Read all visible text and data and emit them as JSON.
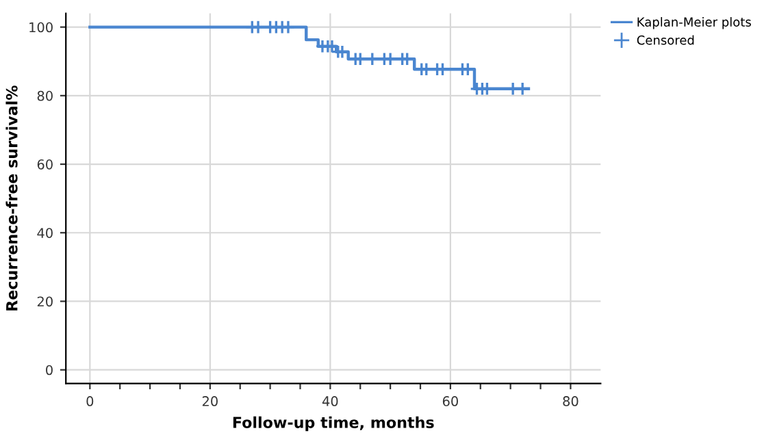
{
  "chart_data": {
    "type": "step",
    "xlabel": "Follow-up time, months",
    "ylabel": "Recurrence-free survival%",
    "series": [
      {
        "name": "Kaplan-Meier plots",
        "color": "#4a86d0",
        "marker": "none",
        "x": [
          0,
          36,
          38,
          41,
          43,
          54,
          64,
          73
        ],
        "values": [
          100,
          96.3,
          94.4,
          92.8,
          90.7,
          87.7,
          82,
          82
        ]
      },
      {
        "name": "Censored",
        "type": "scatter",
        "color": "#4a86d0",
        "marker": "cross",
        "x": [
          27,
          28,
          30,
          31,
          32,
          33,
          38.7,
          39.6,
          40.3,
          41.3,
          42,
          44.2,
          45,
          47,
          49,
          50,
          52,
          52.8,
          55.2,
          56,
          57.8,
          58.7,
          62,
          62.9,
          64.4,
          65.3,
          66.1,
          70.4,
          72
        ],
        "values": [
          100,
          100,
          100,
          100,
          100,
          100,
          94.4,
          94.4,
          94.4,
          92.8,
          92.8,
          90.7,
          90.7,
          90.7,
          90.7,
          90.7,
          90.7,
          90.7,
          87.7,
          87.7,
          87.7,
          87.7,
          87.7,
          87.7,
          82,
          82,
          82,
          82,
          82
        ]
      }
    ],
    "xlim": [
      -4,
      85
    ],
    "ylim": [
      -4,
      104
    ],
    "xticks": [
      0,
      {
        "value": 5,
        "label": null
      },
      {
        "value": 10,
        "label": null
      },
      {
        "value": 15,
        "label": null
      },
      20,
      {
        "value": 25,
        "label": null
      },
      {
        "value": 30,
        "label": null
      },
      {
        "value": 35,
        "label": null
      },
      40,
      {
        "value": 45,
        "label": null
      },
      {
        "value": 50,
        "label": null
      },
      {
        "value": 55,
        "label": null
      },
      60,
      {
        "value": 65,
        "label": null
      },
      {
        "value": 70,
        "label": null
      },
      {
        "value": 75,
        "label": null
      },
      80
    ],
    "yticks": [
      0,
      20,
      40,
      60,
      80,
      100
    ],
    "grid": true,
    "legend": "top right"
  }
}
